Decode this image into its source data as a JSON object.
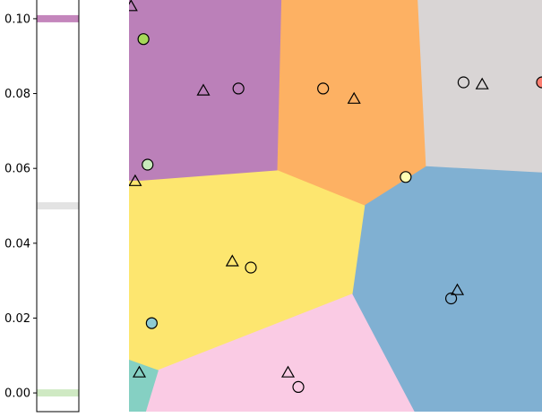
{
  "chart_data": [
    {
      "type": "heatmap",
      "role": "colorbar",
      "ylim": [
        -0.005,
        0.105
      ],
      "ticks": [
        0.0,
        0.02,
        0.04,
        0.06,
        0.08,
        0.1
      ],
      "tick_labels": [
        "0.00",
        "0.02",
        "0.04",
        "0.06",
        "0.08",
        "0.10"
      ],
      "bands": [
        {
          "value": 0.1,
          "color": "#c486bc"
        },
        {
          "value": 0.05,
          "color": "#e3e3e3"
        },
        {
          "value": 0.0,
          "color": "#cfe9c3"
        }
      ]
    },
    {
      "type": "scatter",
      "role": "voronoi-map",
      "xlim": [
        0,
        1
      ],
      "ylim": [
        0,
        1
      ],
      "regions": [
        {
          "color": "#bb80b9",
          "polygon": [
            [
              0,
              1
            ],
            [
              0.37,
              1
            ],
            [
              0.36,
              0.585
            ],
            [
              0.03,
              0.56
            ],
            [
              0,
              0.56
            ]
          ]
        },
        {
          "color": "#fdb163",
          "polygon": [
            [
              0.37,
              1
            ],
            [
              0.7,
              1
            ],
            [
              0.72,
              0.595
            ],
            [
              0.57,
              0.5
            ],
            [
              0.36,
              0.585
            ]
          ]
        },
        {
          "color": "#d9d5d5",
          "polygon": [
            [
              0.7,
              1
            ],
            [
              1,
              1
            ],
            [
              1,
              0.58
            ],
            [
              0.72,
              0.595
            ]
          ]
        },
        {
          "color": "#80b0d2",
          "polygon": [
            [
              0.72,
              0.595
            ],
            [
              1,
              0.58
            ],
            [
              1,
              0
            ],
            [
              0.69,
              0
            ],
            [
              0.54,
              0.285
            ],
            [
              0.57,
              0.5
            ]
          ]
        },
        {
          "color": "#fde66f",
          "polygon": [
            [
              0,
              0.56
            ],
            [
              0.03,
              0.56
            ],
            [
              0.36,
              0.585
            ],
            [
              0.57,
              0.5
            ],
            [
              0.54,
              0.285
            ],
            [
              0.07,
              0.1
            ],
            [
              0,
              0.125
            ]
          ]
        },
        {
          "color": "#facbe4",
          "polygon": [
            [
              0.07,
              0.1
            ],
            [
              0.54,
              0.285
            ],
            [
              0.69,
              0
            ],
            [
              0.04,
              0
            ]
          ]
        },
        {
          "color": "#85d0c3",
          "polygon": [
            [
              0,
              0.125
            ],
            [
              0.07,
              0.1
            ],
            [
              0.04,
              0
            ],
            [
              0,
              0
            ]
          ]
        }
      ],
      "circles": [
        {
          "x": 0.035,
          "y": 0.905,
          "color": "#a6d95a"
        },
        {
          "x": 0.265,
          "y": 0.785,
          "color": "none"
        },
        {
          "x": 0.47,
          "y": 0.785,
          "color": "none"
        },
        {
          "x": 0.81,
          "y": 0.8,
          "color": "none"
        },
        {
          "x": 1.0,
          "y": 0.8,
          "color": "#fb7f72"
        },
        {
          "x": 0.045,
          "y": 0.6,
          "color": "#c8eabb"
        },
        {
          "x": 0.67,
          "y": 0.57,
          "color": "#ffffb4"
        },
        {
          "x": 0.295,
          "y": 0.35,
          "color": "none"
        },
        {
          "x": 0.78,
          "y": 0.275,
          "color": "none"
        },
        {
          "x": 0.055,
          "y": 0.215,
          "color": "#8ecbd4"
        },
        {
          "x": 0.41,
          "y": 0.06,
          "color": "none"
        }
      ],
      "triangles": [
        {
          "x": 0.005,
          "y": 0.985
        },
        {
          "x": 0.18,
          "y": 0.78
        },
        {
          "x": 0.545,
          "y": 0.76
        },
        {
          "x": 0.855,
          "y": 0.795
        },
        {
          "x": 0.015,
          "y": 0.56
        },
        {
          "x": 0.25,
          "y": 0.365
        },
        {
          "x": 0.795,
          "y": 0.295
        },
        {
          "x": 0.025,
          "y": 0.095
        },
        {
          "x": 0.385,
          "y": 0.095
        }
      ]
    }
  ]
}
